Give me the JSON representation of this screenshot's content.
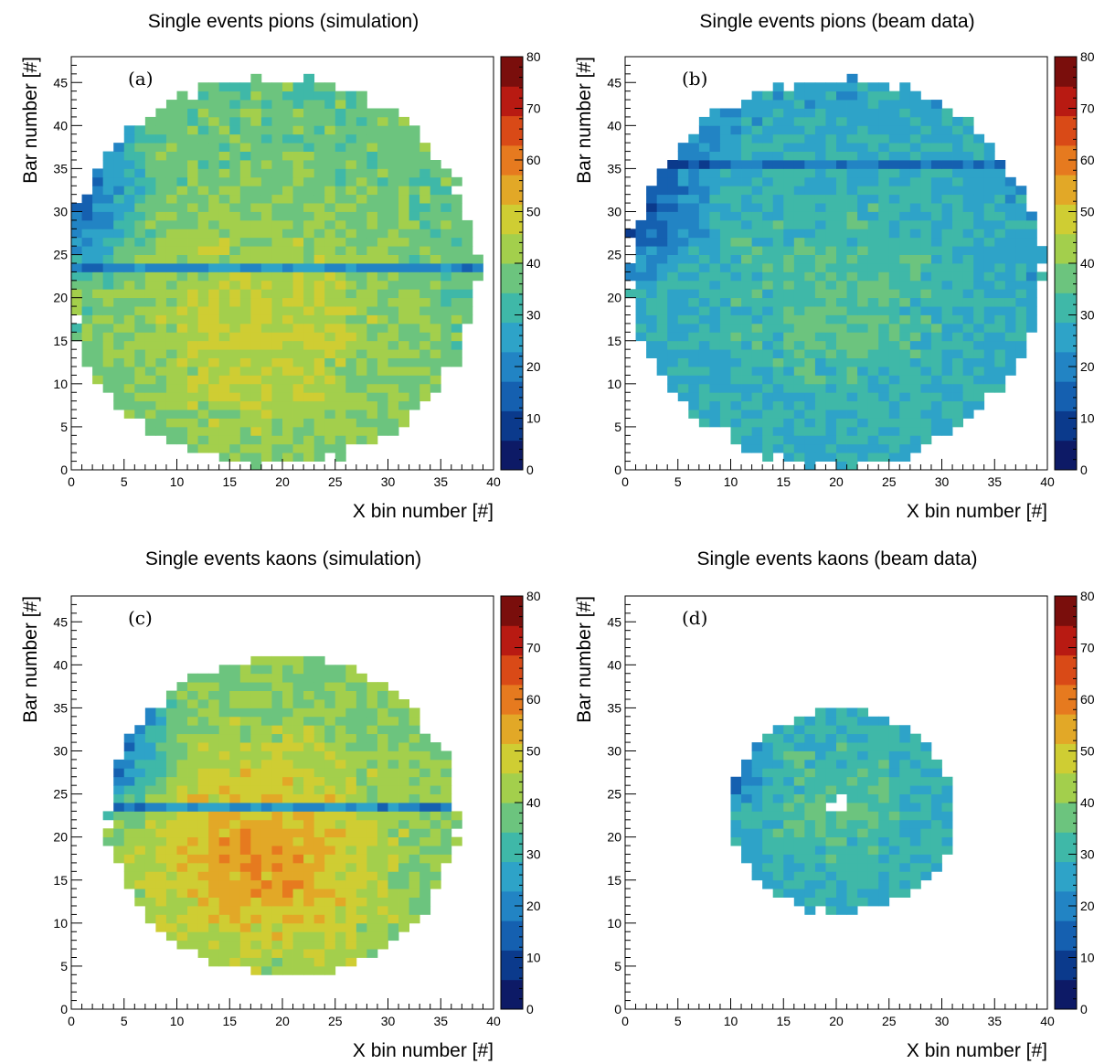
{
  "colors": {
    "palette": [
      "#0d1a66",
      "#0b3a8c",
      "#1560b0",
      "#2284c4",
      "#2ea3c8",
      "#3fb8a8",
      "#6cc47e",
      "#a3cf4c",
      "#cfcd33",
      "#e2a827",
      "#e67a1f",
      "#d94a17",
      "#b81a12",
      "#7a0e0c"
    ]
  },
  "chart_data": [
    {
      "id": "a",
      "type": "heatmap",
      "title": "Single events pions (simulation)",
      "panel_label": "(a)",
      "xlabel": "X bin number [#]",
      "ylabel": "Bar number [#]",
      "xlim": [
        0,
        40
      ],
      "ylim": [
        0,
        48
      ],
      "xticks": [
        "0",
        "5",
        "10",
        "15",
        "20",
        "25",
        "30",
        "35",
        "40"
      ],
      "yticks": [
        "0",
        "5",
        "10",
        "15",
        "20",
        "25",
        "30",
        "35",
        "40",
        "45"
      ],
      "zlim": [
        0,
        80
      ],
      "zticks": [
        "0",
        "10",
        "20",
        "30",
        "40",
        "50",
        "60",
        "70",
        "80"
      ],
      "footprint": {
        "center_x": 19,
        "center_y": 23,
        "radius_x": 19.5,
        "radius_y": 22.5
      },
      "z_profile": {
        "base": 36,
        "peak": 47,
        "peak_center": [
          18,
          16
        ],
        "left_low": 8,
        "band_bar": 23,
        "band_value": 12
      }
    },
    {
      "id": "b",
      "type": "heatmap",
      "title": "Single events pions (beam data)",
      "panel_label": "(b)",
      "xlabel": "X bin number [#]",
      "ylabel": "Bar number [#]",
      "xlim": [
        0,
        40
      ],
      "ylim": [
        0,
        48
      ],
      "xticks": [
        "0",
        "5",
        "10",
        "15",
        "20",
        "25",
        "30",
        "35",
        "40"
      ],
      "yticks": [
        "0",
        "5",
        "10",
        "15",
        "20",
        "25",
        "30",
        "35",
        "40",
        "45"
      ],
      "zlim": [
        0,
        80
      ],
      "zticks": [
        "0",
        "10",
        "20",
        "30",
        "40",
        "50",
        "60",
        "70",
        "80"
      ],
      "footprint": {
        "center_x": 20,
        "center_y": 23,
        "radius_x": 19.5,
        "radius_y": 22.5
      },
      "z_profile": {
        "base": 26,
        "peak": 34,
        "peak_center": [
          20,
          20
        ],
        "left_low": 6,
        "band_bar": 35,
        "band_value": 10
      }
    },
    {
      "id": "c",
      "type": "heatmap",
      "title": "Single events kaons (simulation)",
      "panel_label": "(c)",
      "xlabel": "X bin number [#]",
      "ylabel": "Bar number [#]",
      "xlim": [
        0,
        40
      ],
      "ylim": [
        0,
        48
      ],
      "xticks": [
        "0",
        "5",
        "10",
        "15",
        "20",
        "25",
        "30",
        "35",
        "40"
      ],
      "yticks": [
        "0",
        "5",
        "10",
        "15",
        "20",
        "25",
        "30",
        "35",
        "40",
        "45"
      ],
      "zlim": [
        0,
        80
      ],
      "zticks": [
        "0",
        "10",
        "20",
        "30",
        "40",
        "50",
        "60",
        "70",
        "80"
      ],
      "footprint": {
        "center_x": 20,
        "center_y": 22.5,
        "radius_x": 16.5,
        "radius_y": 18.5
      },
      "z_profile": {
        "base": 38,
        "peak": 56,
        "peak_center": [
          18,
          18
        ],
        "left_low": 8,
        "band_bar": 23,
        "band_value": 8
      }
    },
    {
      "id": "d",
      "type": "heatmap",
      "title": "Single events kaons (beam data)",
      "panel_label": "(d)",
      "xlabel": "X bin number [#]",
      "ylabel": "Bar number [#]",
      "xlim": [
        0,
        40
      ],
      "ylim": [
        0,
        48
      ],
      "xticks": [
        "0",
        "5",
        "10",
        "15",
        "20",
        "25",
        "30",
        "35",
        "40"
      ],
      "yticks": [
        "0",
        "5",
        "10",
        "15",
        "20",
        "25",
        "30",
        "35",
        "40",
        "45"
      ],
      "zlim": [
        0,
        80
      ],
      "zticks": [
        "0",
        "10",
        "20",
        "30",
        "40",
        "50",
        "60",
        "70",
        "80"
      ],
      "footprint": {
        "center_x": 20.5,
        "center_y": 23,
        "radius_x": 10.8,
        "radius_y": 11.8
      },
      "z_profile": {
        "base": 28,
        "peak": 34,
        "peak_center": [
          20,
          24
        ],
        "left_low": 12,
        "band_bar": 0,
        "band_value": 0
      }
    }
  ]
}
